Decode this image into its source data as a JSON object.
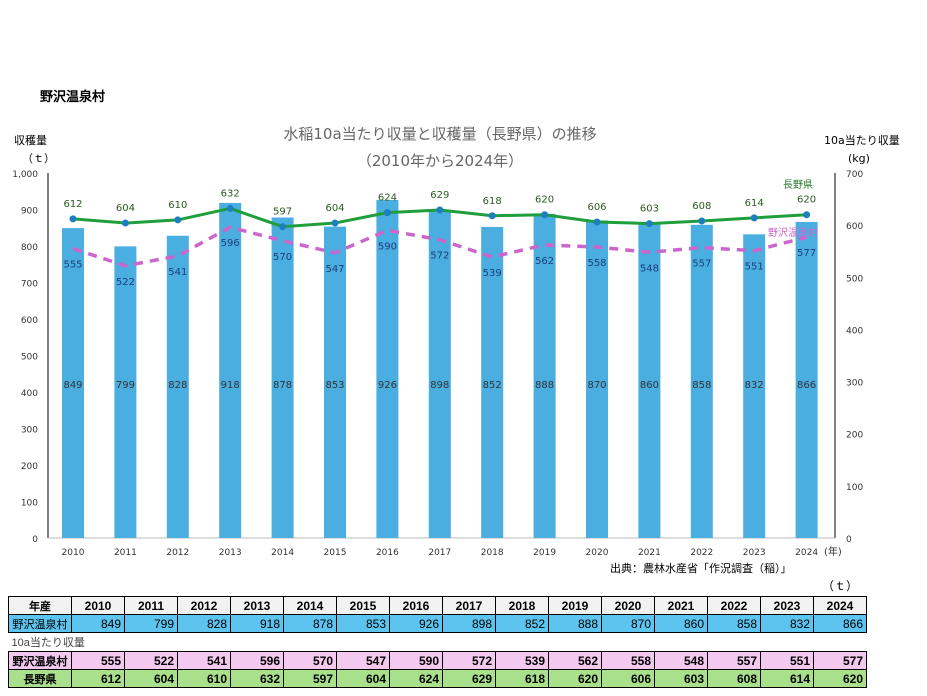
{
  "heading": "野沢温泉村",
  "chart_data": {
    "type": "bar+line",
    "title": "水稲10a当たり収量と収穫量（長野県）の推移",
    "subtitle": "（2010年から2024年）",
    "ylabel_left": "収穫量",
    "yunit_left": "（ｔ）",
    "ylabel_right": "10a当たり収量",
    "yunit_right": "(kg)",
    "xunit": "(年)",
    "ylim_left": [
      0,
      1000
    ],
    "yticks_left": [
      "0",
      "100",
      "200",
      "300",
      "400",
      "500",
      "600",
      "700",
      "800",
      "900",
      "1,000"
    ],
    "ylim_right": [
      0,
      700
    ],
    "yticks_right": [
      "0",
      "100",
      "200",
      "300",
      "400",
      "500",
      "600",
      "700"
    ],
    "categories": [
      "2010",
      "2011",
      "2012",
      "2013",
      "2014",
      "2015",
      "2016",
      "2017",
      "2018",
      "2019",
      "2020",
      "2021",
      "2022",
      "2023",
      "2024"
    ],
    "bars": {
      "values": [
        849,
        799,
        828,
        918,
        878,
        853,
        926,
        898,
        852,
        888,
        870,
        860,
        858,
        832,
        866
      ],
      "color": "#4aaee0",
      "axis": "left"
    },
    "series": [
      {
        "name": "長野県",
        "values": [
          612,
          604,
          610,
          632,
          597,
          604,
          624,
          629,
          618,
          620,
          606,
          603,
          608,
          614,
          620
        ],
        "color": "#1f9e3c",
        "axis": "right",
        "style": "solid"
      },
      {
        "name": "野沢温泉村",
        "values": [
          555,
          522,
          541,
          596,
          570,
          547,
          590,
          572,
          539,
          562,
          558,
          548,
          557,
          551,
          577
        ],
        "color": "#cc66cc",
        "axis": "right",
        "style": "dashed"
      }
    ],
    "grid": false,
    "source": "出典：農林水産省「作況調査（稲）」"
  },
  "table": {
    "unit": "（ｔ）",
    "header_label": "年産",
    "harvest_label": "野沢温泉村",
    "yield_caption": "10a当たり収量",
    "village_label": "野沢温泉村",
    "pref_label": "長野県"
  }
}
